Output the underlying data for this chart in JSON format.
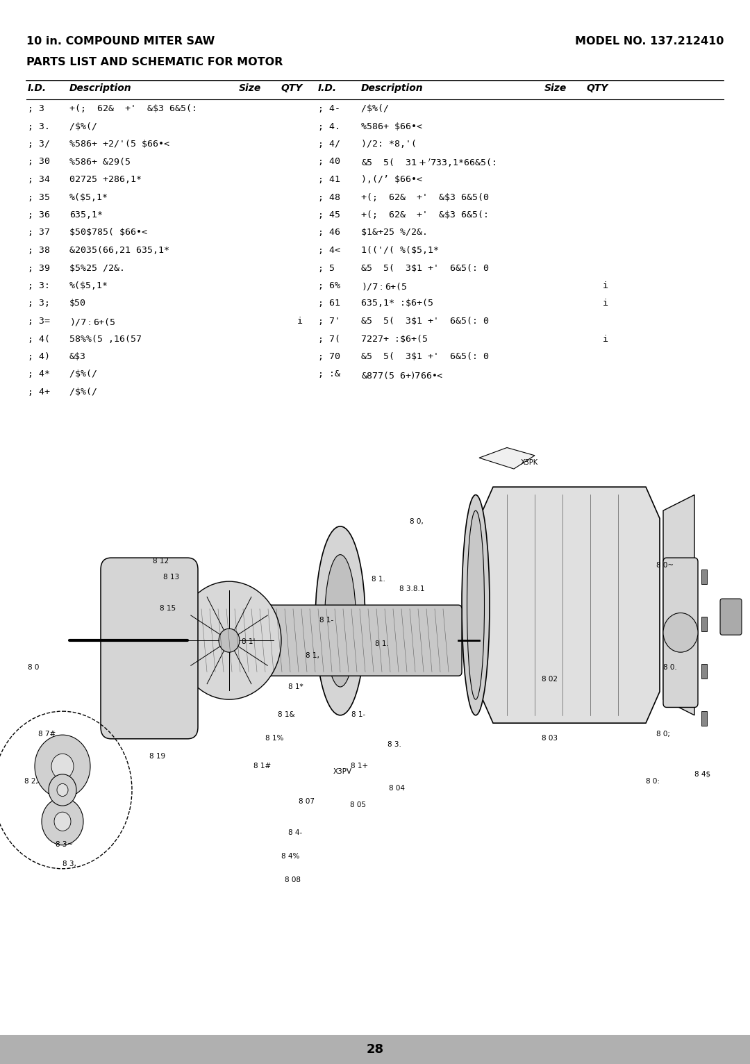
{
  "title_left": "10 in. COMPOUND MITER SAW",
  "title_right": "MODEL NO. 137.212410",
  "subtitle": "PARTS LIST AND SCHEMATIC FOR MOTOR",
  "page_number": "28",
  "background_color": "#ffffff",
  "text_color": "#000000",
  "footer_color": "#b0b0b0",
  "left_rows": [
    [
      "; 3",
      "+(;  62&  +'  &$3 6&5(:"
    ],
    [
      "; 3.",
      "/$%(/ "
    ],
    [
      "; 3/",
      "%586+ +2/'(5 $66•<"
    ],
    [
      "; 30",
      "%586+ &29(5"
    ],
    [
      "; 34",
      "02725 +286,1*"
    ],
    [
      "; 35",
      "%($5,1*"
    ],
    [
      "; 36",
      "635,1*"
    ],
    [
      "; 37",
      "$50$785( $66•<"
    ],
    [
      "; 38",
      "&2035(66,21 635,1*"
    ],
    [
      "; 39",
      "$5%25 /2&."
    ],
    [
      "; 3:",
      "%($5,1*"
    ],
    [
      "; 3;",
      "$50"
    ],
    [
      "; 3=",
      ")/$7 :$6+(5",
      "",
      "i"
    ],
    [
      "; 4(",
      "58%%(5 ,16(57"
    ],
    [
      "; 4)",
      "&$3"
    ],
    [
      "; 4*",
      "/$%(/ "
    ],
    [
      "; 4+",
      "/$%(/ "
    ]
  ],
  "right_rows": [
    [
      "; 4-",
      "/$%(/ "
    ],
    [
      "; 4.",
      "%586+ $66•<"
    ],
    [
      "; 4/",
      ")/2: *8,'("
    ],
    [
      "; 40",
      "&5  5(  3$1 +'  7$33,1*66&5(:"
    ],
    [
      "; 41",
      "),(/’ $66•<"
    ],
    [
      "; 48",
      "+(;  62&  +'  &$3 6&5(0"
    ],
    [
      "; 45",
      "+(;  62&  +'  &$3 6&5(:"
    ],
    [
      "; 46",
      "$1&+25 %/2&."
    ],
    [
      "; 4<",
      "1(('/( %($5,1*"
    ],
    [
      "; 5",
      "&5  5(  3$1 +'  6&5(: 0"
    ],
    [
      "; 6%",
      ")/$7 :$6+(5",
      "",
      "i"
    ],
    [
      "; 61",
      "635,1* :$6+(5",
      "",
      "i"
    ],
    [
      "; 7'",
      "&5  5(  3$1 +'  6&5(: 0"
    ],
    [
      "; 7(",
      "7227+ :$6+(5",
      "",
      "i"
    ],
    [
      "; 70",
      "&5  5(  3$1 +'  6&5(: 0"
    ],
    [
      "; :&",
      "&877(5 6+$)7 $66•<"
    ]
  ]
}
